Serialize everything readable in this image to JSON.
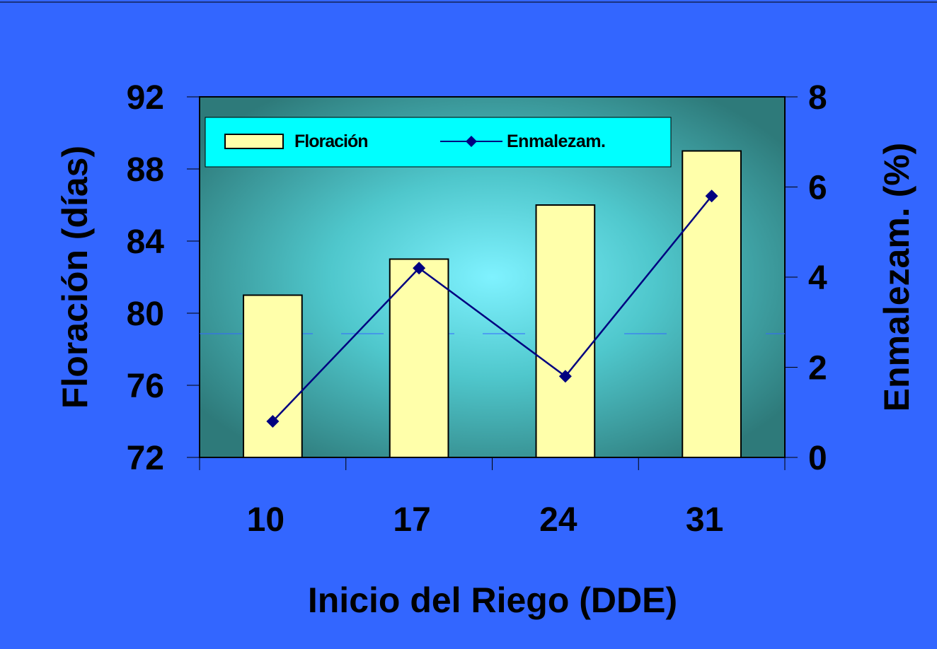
{
  "chart_data": {
    "type": "bar",
    "categories": [
      "10",
      "17",
      "24",
      "31"
    ],
    "xlabel": "Inicio del Riego (DDE)",
    "ylabel": "Floración (días)",
    "y2label": "Enmalezam. (%)",
    "ylim": [
      72,
      92
    ],
    "y2lim": [
      0,
      8
    ],
    "yticks": [
      "72",
      "76",
      "80",
      "84",
      "88",
      "92"
    ],
    "y2ticks": [
      "0",
      "2",
      "4",
      "6",
      "8"
    ],
    "series": [
      {
        "name": "Floración",
        "type": "bar",
        "axis": "left",
        "values": [
          81,
          83,
          86,
          89
        ]
      },
      {
        "name": "Enmalezam.",
        "type": "line",
        "axis": "right",
        "marker": "diamond",
        "values": [
          0.8,
          4.2,
          1.8,
          5.8
        ]
      }
    ],
    "legend": {
      "position": "top-left",
      "entries": [
        "Floración",
        "Enmalezam."
      ]
    },
    "colors": {
      "background": "#3366ff",
      "plot_center": "#7ff2ff",
      "plot_edge": "#2e7a7a",
      "bar_fill": "#ffffaa",
      "line": "#000080",
      "legend_bg": "#00ffff"
    },
    "grid": false
  }
}
